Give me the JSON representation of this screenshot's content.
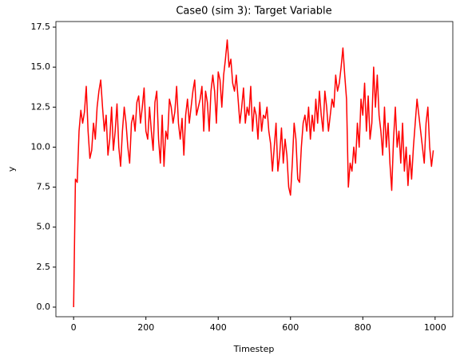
{
  "chart_data": {
    "type": "line",
    "title": "Case0 (sim 3): Target Variable",
    "xlabel": "Timestep",
    "ylabel": "y",
    "x": [
      0,
      5,
      10,
      15,
      20,
      25,
      30,
      35,
      40,
      45,
      50,
      55,
      60,
      65,
      70,
      75,
      80,
      85,
      90,
      95,
      100,
      105,
      110,
      115,
      120,
      125,
      130,
      135,
      140,
      145,
      150,
      155,
      160,
      165,
      170,
      175,
      180,
      185,
      190,
      195,
      200,
      205,
      210,
      215,
      220,
      225,
      230,
      235,
      240,
      245,
      250,
      255,
      260,
      265,
      270,
      275,
      280,
      285,
      290,
      295,
      300,
      305,
      310,
      315,
      320,
      325,
      330,
      335,
      340,
      345,
      350,
      355,
      360,
      365,
      370,
      375,
      380,
      385,
      390,
      395,
      400,
      405,
      410,
      415,
      420,
      425,
      430,
      435,
      440,
      445,
      450,
      455,
      460,
      465,
      470,
      475,
      480,
      485,
      490,
      495,
      500,
      505,
      510,
      515,
      520,
      525,
      530,
      535,
      540,
      545,
      550,
      555,
      560,
      565,
      570,
      575,
      580,
      585,
      590,
      595,
      600,
      605,
      610,
      615,
      620,
      625,
      630,
      635,
      640,
      645,
      650,
      655,
      660,
      665,
      670,
      675,
      680,
      685,
      690,
      695,
      700,
      705,
      710,
      715,
      720,
      725,
      730,
      735,
      740,
      745,
      750,
      755,
      760,
      765,
      770,
      775,
      780,
      785,
      790,
      795,
      800,
      805,
      810,
      815,
      820,
      825,
      830,
      835,
      840,
      845,
      850,
      855,
      860,
      865,
      870,
      875,
      880,
      885,
      890,
      895,
      900,
      905,
      910,
      915,
      920,
      925,
      930,
      935,
      940,
      945,
      950,
      955,
      960,
      965,
      970,
      975,
      980,
      985,
      990,
      995
    ],
    "series": [
      {
        "name": "y",
        "color": "#ff0000",
        "values": [
          0,
          8,
          7.8,
          11,
          12.3,
          11.5,
          12.2,
          13.8,
          11,
          9.3,
          9.8,
          11.5,
          10.5,
          12.5,
          13.5,
          14.2,
          12.5,
          11,
          12,
          9.5,
          10.5,
          12.5,
          9.8,
          11,
          12.7,
          10,
          8.8,
          11,
          12.5,
          11.5,
          10,
          9,
          11.5,
          12,
          11,
          12.8,
          13.2,
          11.5,
          12.5,
          13.7,
          11,
          10.5,
          12.5,
          11,
          9.8,
          12.8,
          13.5,
          10.5,
          9,
          12,
          8.8,
          11,
          10.5,
          13,
          12.5,
          11.5,
          12.2,
          13.8,
          11.5,
          10.5,
          11.8,
          9.5,
          12,
          13,
          11.5,
          12.5,
          13.5,
          14.2,
          12,
          12.5,
          13,
          13.8,
          11,
          13.5,
          12.8,
          11,
          13.5,
          14.5,
          13.5,
          11.5,
          14.7,
          14.2,
          12.5,
          14.5,
          15.5,
          16.7,
          15,
          15.5,
          14,
          13.5,
          14.5,
          13,
          11.5,
          12.5,
          13.7,
          11.5,
          12.5,
          12,
          13.8,
          11,
          12.5,
          12,
          10.5,
          12.8,
          11,
          12,
          11.8,
          12.5,
          11,
          10.2,
          8.5,
          10,
          11.5,
          8.5,
          9.5,
          11.2,
          9,
          10.5,
          9.5,
          7.5,
          7,
          9,
          11.5,
          10.5,
          8,
          7.8,
          10,
          11.5,
          12,
          11,
          12.5,
          10.5,
          12,
          11,
          13,
          11.5,
          13.5,
          12,
          11,
          13.5,
          12.5,
          11,
          12,
          13,
          12.5,
          14.5,
          13.5,
          14,
          15,
          16.2,
          14.5,
          13,
          7.5,
          9,
          8.5,
          10,
          9,
          11.5,
          10,
          13,
          12,
          14,
          11,
          13.2,
          10.5,
          11.5,
          15,
          12.5,
          14.5,
          12,
          11,
          9.5,
          12.5,
          10,
          11.5,
          9,
          7.3,
          10.5,
          12.5,
          10,
          11,
          9,
          11.5,
          8.5,
          10,
          7.6,
          9.5,
          8,
          10,
          11.5,
          13,
          12,
          11,
          10,
          9,
          11.5,
          12.5,
          10,
          8.8,
          9.8
        ]
      }
    ],
    "xlim": [
      -49,
      1049
    ],
    "ylim": [
      -0.6,
      17.85
    ],
    "xticks": [
      0,
      200,
      400,
      600,
      800,
      1000
    ],
    "yticks": [
      {
        "value": 0,
        "label": "0.0"
      },
      2.5,
      {
        "value": 5,
        "label": "5.0"
      },
      7.5,
      {
        "value": 10,
        "label": "10.0"
      },
      12.5,
      {
        "value": 15,
        "label": "15.0"
      },
      17.5
    ]
  }
}
